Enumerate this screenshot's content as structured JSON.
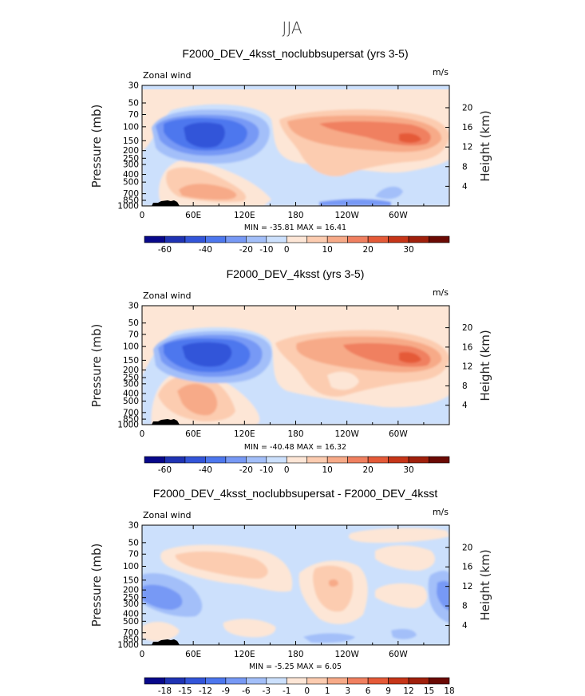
{
  "figure_title": "JJA",
  "chart_data": [
    {
      "type": "contour",
      "title": "F2000_DEV_4ksst_noclubbsupersat (yrs 3-5)",
      "left_label": "Zonal wind",
      "right_label": "m/s",
      "ylabel": "Pressure (mb)",
      "ylabel_right": "Height (km)",
      "x_ticks": [
        "0",
        "60E",
        "120E",
        "180",
        "120W",
        "60W"
      ],
      "y_ticks": [
        "30",
        "50",
        "70",
        "100",
        "150",
        "200",
        "250",
        "300",
        "400",
        "500",
        "700",
        "850",
        "1000"
      ],
      "y_right_ticks": [
        "20",
        "16",
        "12",
        "8",
        "4"
      ],
      "stats": "MIN = -35.81   MAX =  16.41",
      "colorbar_labels": [
        "-60",
        "-40",
        "-20",
        "-10",
        "0",
        "10",
        "20",
        "30"
      ],
      "features": [
        {
          "kind": "min",
          "lon": 75,
          "p": 130,
          "value": -35.81
        },
        {
          "kind": "max",
          "lon": 298,
          "p": 140,
          "value": 16.41
        }
      ]
    },
    {
      "type": "contour",
      "title": "F2000_DEV_4ksst (yrs 3-5)",
      "left_label": "Zonal wind",
      "right_label": "m/s",
      "ylabel": "Pressure (mb)",
      "ylabel_right": "Height (km)",
      "x_ticks": [
        "0",
        "60E",
        "120E",
        "180",
        "120W",
        "60W"
      ],
      "y_ticks": [
        "30",
        "50",
        "70",
        "100",
        "150",
        "200",
        "250",
        "300",
        "400",
        "500",
        "700",
        "850",
        "1000"
      ],
      "y_right_ticks": [
        "20",
        "16",
        "12",
        "8",
        "4"
      ],
      "stats": "MIN = -40.48   MAX =  16.32",
      "colorbar_labels": [
        "-60",
        "-40",
        "-20",
        "-10",
        "0",
        "10",
        "20",
        "30"
      ],
      "features": [
        {
          "kind": "min",
          "lon": 80,
          "p": 110,
          "value": -40.48
        },
        {
          "kind": "max",
          "lon": 300,
          "p": 140,
          "value": 16.32
        }
      ]
    },
    {
      "type": "contour",
      "title": "F2000_DEV_4ksst_noclubbsupersat - F2000_DEV_4ksst",
      "left_label": "Zonal wind",
      "right_label": "m/s",
      "ylabel": "Pressure (mb)",
      "ylabel_right": "Height (km)",
      "x_ticks": [
        "0",
        "60E",
        "120E",
        "180",
        "120W",
        "60W"
      ],
      "y_ticks": [
        "30",
        "50",
        "70",
        "100",
        "150",
        "200",
        "250",
        "300",
        "400",
        "500",
        "700",
        "850",
        "1000"
      ],
      "y_right_ticks": [
        "20",
        "16",
        "12",
        "8",
        "4"
      ],
      "stats": "MIN =  -5.25   MAX =   6.05",
      "colorbar_labels": [
        "-18",
        "-15",
        "-12",
        "-9",
        "-6",
        "-3",
        "-1",
        "0",
        "1",
        "3",
        "6",
        "9",
        "12",
        "15",
        "18"
      ],
      "features": [
        {
          "kind": "min",
          "lon": 30,
          "p": 250,
          "value": -5.25
        },
        {
          "kind": "max",
          "lon": 215,
          "p": 140,
          "value": 6.05
        }
      ]
    }
  ],
  "colors": {
    "palette": [
      "#08088a",
      "#1f33b3",
      "#3355d9",
      "#4d77ee",
      "#7799f5",
      "#a3bff9",
      "#cce0fc",
      "#fde6d6",
      "#fcccb0",
      "#f7aa88",
      "#f08060",
      "#e55a38",
      "#c63518",
      "#a0200c",
      "#6b0a04"
    ]
  }
}
